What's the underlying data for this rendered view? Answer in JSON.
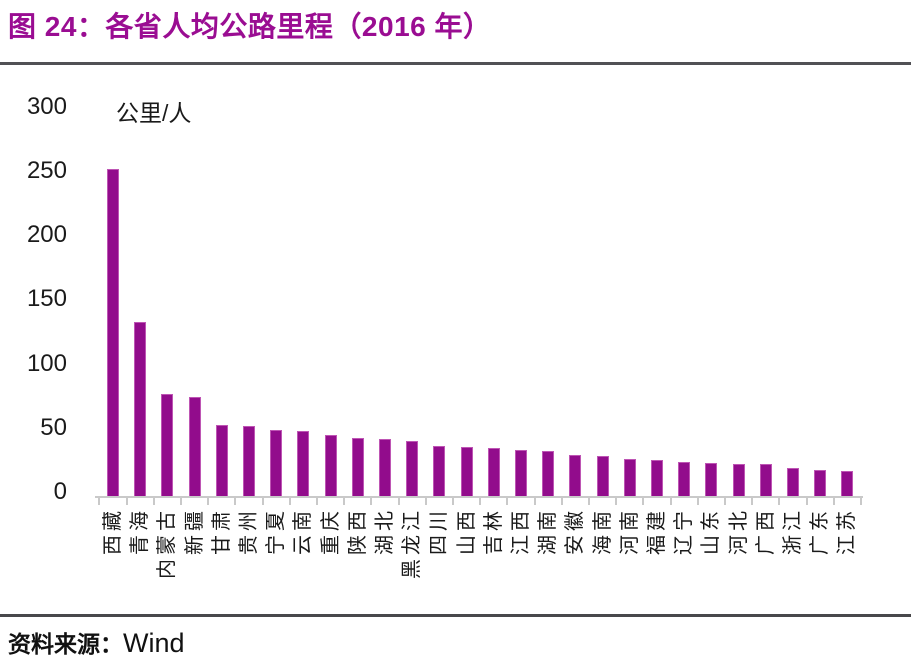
{
  "title": "图 24：各省人均公路里程（2016 年）",
  "source": {
    "label": "资料来源：",
    "value": "Wind"
  },
  "colors": {
    "accent_title": "#9A0D92",
    "bar_fill": "#920C8C",
    "bar_border": "#BE55B4",
    "axis_line": "#C9C9C9",
    "rule_top": "#515155",
    "rule_bottom": "#48484B",
    "tick_text": "#1a1a1a"
  },
  "chart_data": {
    "type": "bar",
    "title": "各省人均公路里程（2016 年）",
    "unit_label": "公里/人",
    "xlabel": "",
    "ylabel": "公里/人",
    "ylim": [
      0,
      300
    ],
    "yticks": [
      0,
      50,
      100,
      150,
      200,
      250,
      300
    ],
    "grid": false,
    "legend": "none",
    "categories": [
      "西藏",
      "青海",
      "内蒙古",
      "新疆",
      "甘肃",
      "贵州",
      "宁夏",
      "云南",
      "重庆",
      "陕西",
      "湖北",
      "黑龙江",
      "四川",
      "山西",
      "吉林",
      "江西",
      "湖南",
      "安徽",
      "海南",
      "河南",
      "福建",
      "辽宁",
      "山东",
      "河北",
      "广西",
      "浙江",
      "广东",
      "江苏"
    ],
    "values": [
      248,
      132,
      77,
      75,
      54,
      53,
      50,
      49,
      46,
      44,
      43,
      42,
      38,
      37,
      36,
      35,
      34,
      31,
      30,
      28,
      27,
      26,
      25,
      24,
      24,
      21,
      20,
      19
    ]
  }
}
